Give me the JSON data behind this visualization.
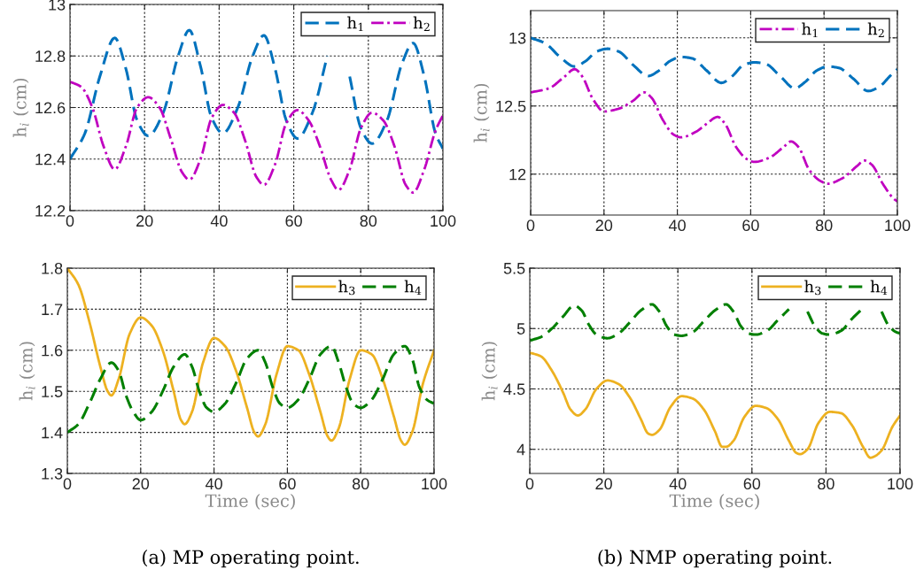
{
  "chart_data": [
    {
      "type": "line",
      "ylabel": "h$_{i}$ (cm)",
      "xlim": [
        0,
        100
      ],
      "xticks": [
        0,
        20,
        40,
        60,
        80,
        100
      ],
      "ylim": [
        12.2,
        13
      ],
      "yticks": [
        12.2,
        12.4,
        12.6,
        12.8,
        13
      ],
      "grid": true,
      "legend": "top right",
      "series": [
        {
          "name": "h$_{1}$",
          "color": "#0072bd",
          "line_style": "dashed",
          "x": [
            0,
            4,
            8,
            12,
            15,
            18,
            21,
            25,
            29,
            32,
            35,
            38,
            41,
            45,
            49,
            52,
            55,
            58,
            61,
            65,
            69,
            72,
            75,
            78,
            81,
            85,
            89,
            92,
            95,
            98,
            100
          ],
          "values": [
            12.4,
            12.5,
            12.72,
            12.87,
            12.75,
            12.55,
            12.49,
            12.58,
            12.8,
            12.9,
            12.76,
            12.56,
            12.5,
            12.6,
            12.8,
            12.88,
            12.75,
            12.55,
            12.48,
            12.58,
            12.8,
            null,
            12.72,
            12.52,
            12.46,
            12.55,
            12.77,
            12.85,
            12.72,
            12.5,
            12.44
          ]
        },
        {
          "name": "h$_{2}$",
          "color": "#c000c0",
          "line_style": "dashdot",
          "x": [
            0,
            3,
            6,
            9,
            12,
            15,
            18,
            21,
            24,
            27,
            30,
            32,
            35,
            38,
            41,
            44,
            47,
            50,
            52,
            55,
            58,
            61,
            64,
            67,
            70,
            72,
            75,
            78,
            81,
            84,
            87,
            90,
            92,
            95,
            98,
            100
          ],
          "values": [
            12.7,
            12.68,
            12.6,
            12.45,
            12.36,
            12.45,
            12.6,
            12.64,
            12.6,
            12.48,
            12.35,
            12.32,
            12.4,
            12.56,
            12.61,
            12.58,
            12.47,
            12.33,
            12.3,
            12.38,
            12.54,
            12.59,
            12.55,
            12.45,
            12.32,
            12.28,
            12.36,
            12.52,
            12.58,
            12.55,
            12.45,
            12.3,
            12.27,
            12.36,
            12.51,
            12.57
          ]
        }
      ]
    },
    {
      "type": "line",
      "ylabel": "h$_{i}$ (cm)",
      "xlim": [
        0,
        100
      ],
      "xticks": [
        0,
        20,
        40,
        60,
        80,
        100
      ],
      "ylim": [
        11.7,
        13.2
      ],
      "yticks": [
        12,
        12.5,
        13
      ],
      "grid": true,
      "legend": "top right",
      "series": [
        {
          "name": "h$_{1}$",
          "color": "#c000c0",
          "line_style": "dashdot",
          "x": [
            0,
            5,
            9,
            12,
            14,
            17,
            20,
            24,
            28,
            31,
            33,
            36,
            39,
            41,
            45,
            48,
            51,
            53,
            56,
            59,
            61,
            65,
            69,
            71,
            73,
            76,
            79,
            81,
            85,
            89,
            91,
            93,
            96,
            99,
            100
          ],
          "values": [
            12.6,
            12.63,
            12.71,
            12.77,
            12.72,
            12.55,
            12.46,
            12.48,
            12.54,
            12.6,
            12.56,
            12.4,
            12.29,
            12.27,
            12.31,
            12.37,
            12.42,
            12.37,
            12.2,
            12.11,
            12.09,
            12.12,
            12.2,
            12.24,
            12.2,
            12.03,
            11.95,
            11.93,
            11.97,
            12.06,
            12.1,
            12.07,
            11.93,
            11.82,
            11.8
          ]
        },
        {
          "name": "h$_{2}$",
          "color": "#0072bd",
          "line_style": "dashed",
          "x": [
            0,
            4,
            8,
            12,
            15,
            18,
            21,
            24,
            28,
            32,
            35,
            38,
            41,
            44,
            48,
            52,
            55,
            58,
            61,
            64,
            68,
            72,
            75,
            78,
            81,
            84,
            88,
            92,
            95,
            98,
            100
          ],
          "values": [
            13.0,
            12.96,
            12.86,
            12.79,
            12.83,
            12.9,
            12.92,
            12.9,
            12.8,
            12.72,
            12.76,
            12.83,
            12.86,
            12.85,
            12.76,
            12.67,
            12.72,
            12.8,
            12.82,
            12.81,
            12.72,
            12.63,
            12.68,
            12.76,
            12.79,
            12.78,
            12.7,
            12.61,
            12.64,
            12.72,
            12.77
          ]
        }
      ]
    },
    {
      "type": "line",
      "xlabel": "Time (sec)",
      "ylabel": "h$_{i}$ (cm)",
      "xlim": [
        0,
        100
      ],
      "xticks": [
        0,
        20,
        40,
        60,
        80,
        100
      ],
      "ylim": [
        1.3,
        1.8
      ],
      "yticks": [
        1.3,
        1.4,
        1.5,
        1.6,
        1.7,
        1.8
      ],
      "grid": true,
      "legend": "top right",
      "annotations": [
        "(a) MP operating point."
      ],
      "series": [
        {
          "name": "h$_{3}$",
          "color": "#edb120",
          "line_style": "solid",
          "x": [
            0,
            3,
            6,
            9,
            11,
            12,
            14,
            17,
            20,
            23,
            26,
            29,
            31,
            32,
            34,
            37,
            40,
            43,
            46,
            49,
            51,
            52,
            54,
            57,
            60,
            63,
            66,
            69,
            71,
            72,
            74,
            77,
            80,
            83,
            86,
            89,
            91,
            92,
            94,
            97,
            100
          ],
          "values": [
            1.8,
            1.76,
            1.67,
            1.56,
            1.5,
            1.49,
            1.53,
            1.64,
            1.68,
            1.66,
            1.6,
            1.5,
            1.43,
            1.42,
            1.45,
            1.57,
            1.63,
            1.61,
            1.55,
            1.46,
            1.4,
            1.39,
            1.42,
            1.54,
            1.61,
            1.6,
            1.54,
            1.45,
            1.39,
            1.38,
            1.41,
            1.53,
            1.6,
            1.59,
            1.53,
            1.44,
            1.38,
            1.37,
            1.4,
            1.52,
            1.6
          ]
        },
        {
          "name": "h$_{4}$",
          "color": "#007f00",
          "line_style": "dashed",
          "x": [
            0,
            3,
            6,
            9,
            12,
            14,
            16,
            18,
            20,
            23,
            26,
            29,
            32,
            34,
            36,
            38,
            40,
            43,
            46,
            49,
            52,
            54,
            56,
            58,
            60,
            63,
            66,
            69,
            72,
            74,
            76,
            78,
            80,
            83,
            86,
            89,
            92,
            94,
            96,
            98,
            100
          ],
          "values": [
            1.4,
            1.42,
            1.47,
            1.53,
            1.57,
            1.55,
            1.49,
            1.45,
            1.43,
            1.45,
            1.5,
            1.56,
            1.59,
            1.56,
            1.5,
            1.46,
            1.45,
            1.47,
            1.52,
            1.58,
            1.6,
            1.57,
            1.51,
            1.47,
            1.46,
            1.48,
            1.53,
            1.59,
            1.61,
            1.57,
            1.51,
            1.47,
            1.46,
            1.48,
            1.53,
            1.59,
            1.61,
            1.58,
            1.51,
            1.48,
            1.47
          ]
        }
      ]
    },
    {
      "type": "line",
      "xlabel": "Time (sec)",
      "ylabel": "h$_{i}$ (cm)",
      "xlim": [
        0,
        100
      ],
      "xticks": [
        0,
        20,
        40,
        60,
        80,
        100
      ],
      "ylim": [
        3.8,
        5.5
      ],
      "yticks": [
        4,
        4.5,
        5,
        5.5
      ],
      "grid": true,
      "legend": "top right",
      "annotations": [
        "(b) NMP operating point."
      ],
      "series": [
        {
          "name": "h$_{3}$",
          "color": "#edb120",
          "line_style": "solid",
          "x": [
            0,
            3,
            6,
            9,
            11,
            13,
            15,
            18,
            21,
            24,
            27,
            30,
            32,
            33,
            35,
            38,
            41,
            44,
            47,
            50,
            52,
            53,
            55,
            58,
            61,
            64,
            67,
            70,
            72,
            73,
            75,
            78,
            81,
            84,
            87,
            90,
            92,
            93,
            95,
            98,
            100
          ],
          "values": [
            4.8,
            4.77,
            4.65,
            4.47,
            4.33,
            4.28,
            4.33,
            4.5,
            4.57,
            4.54,
            4.43,
            4.25,
            4.13,
            4.12,
            4.16,
            4.35,
            4.44,
            4.42,
            4.33,
            4.15,
            4.02,
            4.02,
            4.07,
            4.27,
            4.36,
            4.34,
            4.25,
            4.07,
            3.97,
            3.96,
            4.0,
            4.22,
            4.31,
            4.3,
            4.2,
            4.02,
            3.93,
            3.94,
            3.99,
            4.19,
            4.28
          ]
        },
        {
          "name": "h$_{4}$",
          "color": "#007f00",
          "line_style": "dashed",
          "x": [
            0,
            3,
            6,
            9,
            12,
            14,
            16,
            18,
            21,
            24,
            27,
            30,
            33,
            35,
            37,
            39,
            41,
            44,
            47,
            50,
            53,
            55,
            57,
            59,
            61,
            64,
            67,
            70,
            73,
            75,
            77,
            79,
            81,
            84,
            87,
            90,
            93,
            95,
            97,
            99,
            100
          ],
          "values": [
            4.9,
            4.93,
            5.0,
            5.1,
            5.19,
            5.15,
            5.03,
            4.95,
            4.92,
            4.96,
            5.05,
            5.15,
            5.2,
            5.14,
            5.02,
            4.95,
            4.94,
            4.97,
            5.06,
            5.15,
            5.2,
            5.14,
            5.02,
            4.96,
            4.95,
            4.98,
            5.07,
            5.16,
            null,
            5.14,
            5.02,
            4.96,
            4.95,
            4.98,
            5.08,
            5.17,
            null,
            5.14,
            5.02,
            4.97,
            4.96
          ]
        }
      ]
    }
  ]
}
